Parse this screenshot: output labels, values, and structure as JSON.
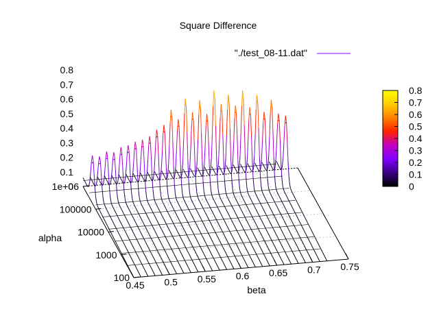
{
  "chart_data": {
    "type": "surface3d",
    "title": "Square Difference",
    "xlabel": "beta",
    "ylabel": "alpha",
    "zlabel": "",
    "xlim": [
      0.45,
      0.75
    ],
    "ylim": [
      100,
      1000000
    ],
    "zlim": [
      0,
      0.8
    ],
    "yscale": "log",
    "grid": true,
    "legend": {
      "position": "top-right",
      "entries": [
        "\"./test_08-11.dat\""
      ]
    },
    "series": [
      {
        "name": "\"./test_08-11.dat\"",
        "color": "#8000ff"
      }
    ],
    "x_ticks": [
      "0.45",
      "0.5",
      "0.55",
      "0.6",
      "0.65",
      "0.7",
      "0.75"
    ],
    "y_ticks": [
      "100",
      "1000",
      "10000",
      "100000",
      "1e+06"
    ],
    "z_ticks": [
      "0",
      "0.1",
      "0.2",
      "0.3",
      "0.4",
      "0.5",
      "0.6",
      "0.7",
      "0.8"
    ],
    "colorbar": {
      "range": [
        0,
        0.8
      ],
      "ticks": [
        "0",
        "0.1",
        "0.2",
        "0.3",
        "0.4",
        "0.5",
        "0.6",
        "0.7",
        "0.8"
      ],
      "palette": [
        "#000000",
        "#3a0085",
        "#8000ff",
        "#c000c0",
        "#ff2000",
        "#ff8000",
        "#ffcc00",
        "#ffff00"
      ]
    },
    "beta_values": [
      0.45,
      0.46,
      0.47,
      0.48,
      0.49,
      0.5,
      0.51,
      0.52,
      0.53,
      0.54,
      0.55,
      0.56,
      0.57,
      0.58,
      0.59,
      0.6,
      0.61,
      0.62,
      0.63,
      0.64,
      0.65,
      0.66,
      0.67,
      0.68,
      0.69,
      0.7,
      0.71,
      0.72
    ],
    "peak_values": [
      0.28,
      0.27,
      0.3,
      0.29,
      0.32,
      0.33,
      0.35,
      0.36,
      0.38,
      0.42,
      0.45,
      0.55,
      0.48,
      0.62,
      0.52,
      0.6,
      0.5,
      0.66,
      0.56,
      0.62,
      0.54,
      0.64,
      0.52,
      0.6,
      0.48,
      0.56,
      0.46,
      0.44
    ],
    "alpha_log10_values": [
      2.5,
      3.0,
      3.5,
      4.0,
      4.5,
      5.0,
      5.5,
      6.0
    ]
  }
}
